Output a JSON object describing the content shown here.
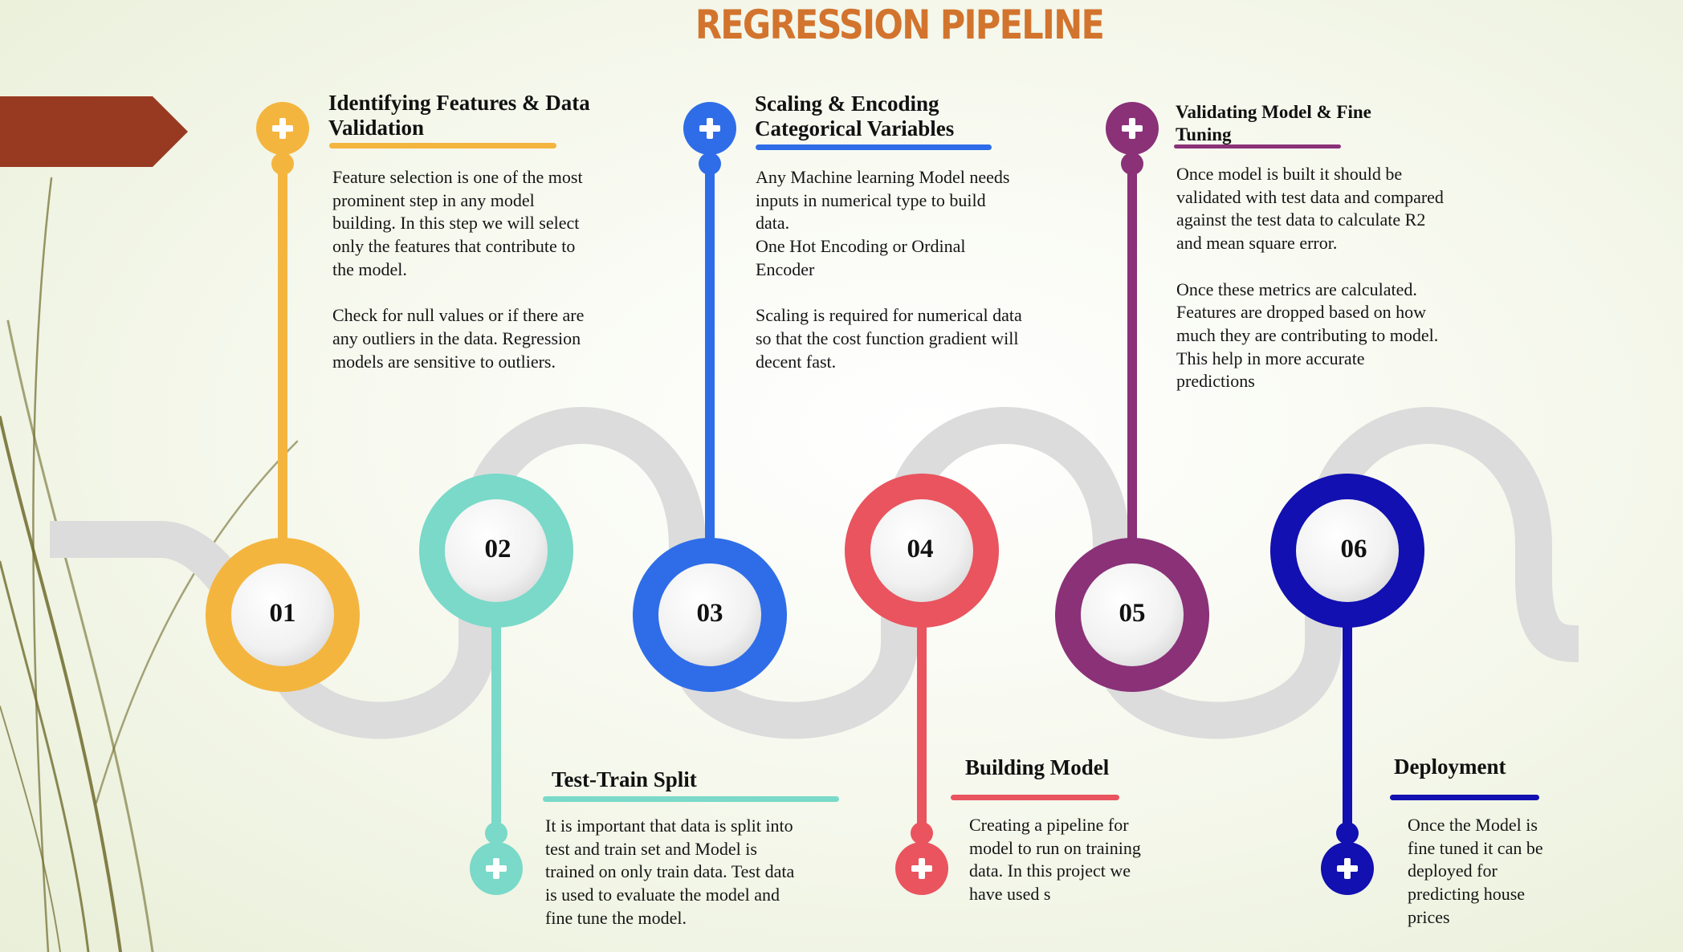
{
  "title": "REGRESSION PIPELINE",
  "colors": {
    "title": "#d2742e",
    "road": "#dcdcdc",
    "arrow": "#983a22",
    "step1": "#f4b53f",
    "step2": "#7ad9c9",
    "step3": "#2f6de8",
    "step4": "#e9545f",
    "step5": "#8a3178",
    "step6": "#1210b0"
  },
  "steps": [
    {
      "number": "01",
      "heading": "Identifying Features & Data\nValidation",
      "body": "Feature selection is one of the most\nprominent step in any model\nbuilding. In this step we will select\nonly the features that contribute to\nthe model.\n\nCheck for null values or if there are\nany outliers in the data. Regression\nmodels are sensitive to outliers.",
      "icon": "plus-icon"
    },
    {
      "number": "02",
      "heading": "Test-Train Split",
      "body": "It is important that data is split into\ntest and train set and Model is\ntrained on only train data. Test data\nis used to evaluate the model and\nfine tune the model.",
      "icon": "plus-icon"
    },
    {
      "number": "03",
      "heading": "Scaling & Encoding\nCategorical Variables",
      "body": "Any Machine learning Model needs\ninputs in numerical type to build\ndata.\nOne Hot Encoding or Ordinal\nEncoder\n\nScaling is required for numerical data\nso that the cost function gradient will\ndecent fast.",
      "icon": "plus-icon"
    },
    {
      "number": "04",
      "heading": "Building Model",
      "body": "Creating a pipeline for\nmodel to run on training\ndata. In this project we\nhave used s",
      "icon": "plus-icon"
    },
    {
      "number": "05",
      "heading": "Validating Model & Fine\nTuning",
      "body": "Once model is built it should be\nvalidated with test data and compared\nagainst the test data to calculate R2\nand mean square error.\n\nOnce these metrics are calculated.\nFeatures are dropped based on how\nmuch they are contributing to model.\nThis help in more accurate\npredictions",
      "icon": "plus-icon"
    },
    {
      "number": "06",
      "heading": "Deployment",
      "body": "Once the Model is\nfine tuned it can be\ndeployed for\npredicting house\nprices",
      "icon": "plus-icon"
    }
  ]
}
